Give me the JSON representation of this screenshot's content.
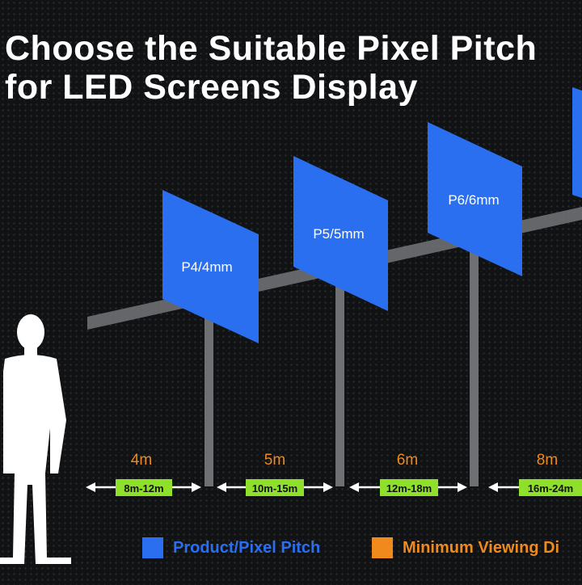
{
  "title_line1": "Choose the Suitable Pixel Pitch",
  "title_line2": "for LED Screens Display",
  "screens": [
    {
      "label": "P4/4mm",
      "distance": "4m",
      "range": "8m-12m"
    },
    {
      "label": "P5/5mm",
      "distance": "5m",
      "range": "10m-15m"
    },
    {
      "label": "P6/6mm",
      "distance": "6m",
      "range": "12m-18m"
    },
    {
      "label": "",
      "distance": "8m",
      "range": "16m-24m"
    }
  ],
  "legend": {
    "pixel_pitch": "Product/Pixel Pitch",
    "viewing": "Minimum Viewing Di"
  },
  "colors": {
    "panel_blue": "#2a6ff0",
    "distance_orange": "#f08a1c",
    "range_green": "#8ee02a",
    "beam_gray": "#6e7073"
  }
}
